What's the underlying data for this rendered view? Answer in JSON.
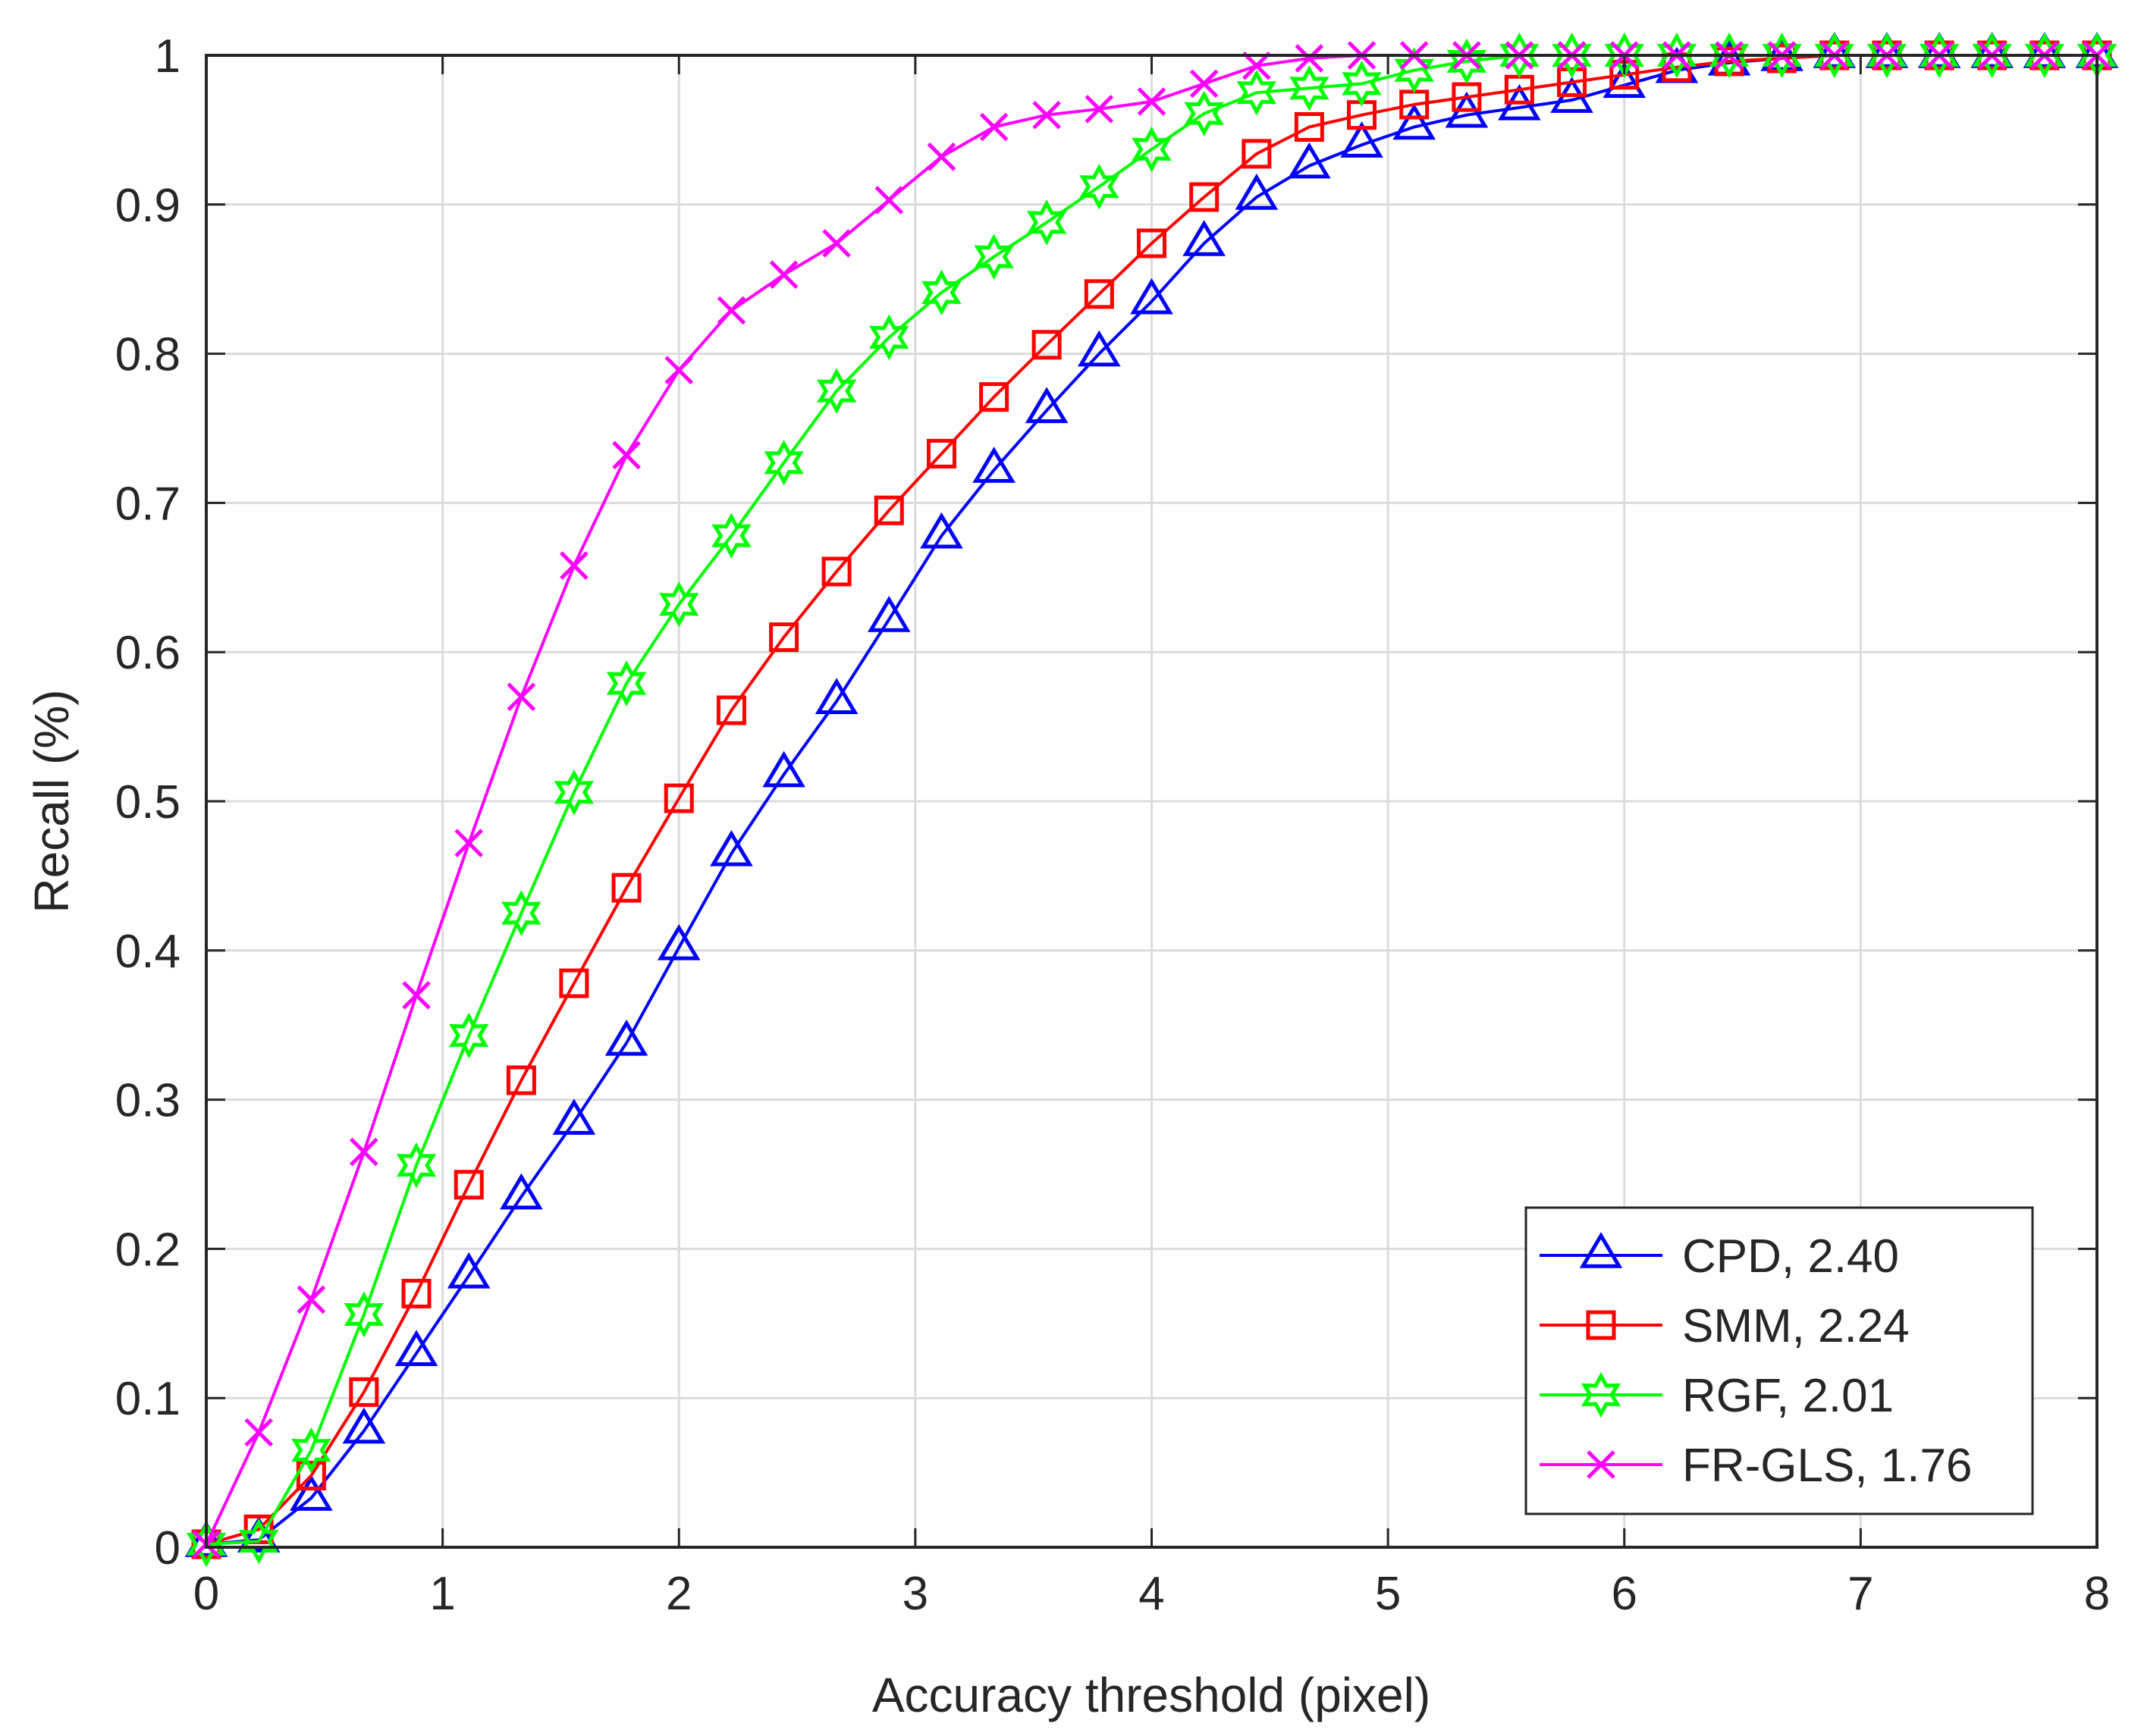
{
  "chart_data": {
    "type": "line",
    "title": "",
    "xlabel": "Accuracy threshold (pixel)",
    "ylabel": "Recall (%)",
    "xlim": [
      0,
      8
    ],
    "ylim": [
      0,
      1
    ],
    "xticks": [
      "0",
      "1",
      "2",
      "3",
      "4",
      "5",
      "6",
      "7",
      "8"
    ],
    "yticks": [
      "0",
      "0.1",
      "0.2",
      "0.3",
      "0.4",
      "0.5",
      "0.6",
      "0.7",
      "0.8",
      "0.9",
      "1"
    ],
    "grid": true,
    "legend_position": "bottom-right",
    "x": [
      0,
      0.222,
      0.444,
      0.667,
      0.889,
      1.111,
      1.333,
      1.556,
      1.778,
      2.0,
      2.222,
      2.444,
      2.667,
      2.889,
      3.111,
      3.333,
      3.556,
      3.778,
      4.0,
      4.222,
      4.444,
      4.667,
      4.889,
      5.111,
      5.333,
      5.556,
      5.778,
      6.0,
      6.222,
      6.444,
      6.667,
      6.889,
      7.111,
      7.333,
      7.556,
      7.778,
      8.0
    ],
    "series": [
      {
        "name": "CPD, 2.40",
        "color": "#0000ff",
        "marker": "triangle",
        "values": [
          0.002,
          0.005,
          0.033,
          0.078,
          0.13,
          0.182,
          0.235,
          0.285,
          0.338,
          0.402,
          0.465,
          0.518,
          0.567,
          0.622,
          0.678,
          0.722,
          0.762,
          0.8,
          0.835,
          0.874,
          0.905,
          0.926,
          0.94,
          0.952,
          0.96,
          0.965,
          0.97,
          0.98,
          0.99,
          0.995,
          0.998,
          1.0,
          1.0,
          1.0,
          1.0,
          1.0,
          1.0
        ]
      },
      {
        "name": "SMM, 2.24",
        "color": "#ff0000",
        "marker": "square",
        "values": [
          0.002,
          0.012,
          0.048,
          0.104,
          0.17,
          0.243,
          0.313,
          0.378,
          0.442,
          0.502,
          0.561,
          0.61,
          0.654,
          0.695,
          0.733,
          0.771,
          0.806,
          0.84,
          0.874,
          0.905,
          0.934,
          0.952,
          0.96,
          0.967,
          0.972,
          0.977,
          0.982,
          0.987,
          0.992,
          0.996,
          0.998,
          1.0,
          1.0,
          1.0,
          1.0,
          1.0,
          1.0
        ]
      },
      {
        "name": "RGF, 2.01",
        "color": "#00ff00",
        "marker": "hexagram",
        "values": [
          0.002,
          0.004,
          0.065,
          0.156,
          0.256,
          0.343,
          0.425,
          0.506,
          0.579,
          0.632,
          0.678,
          0.727,
          0.775,
          0.811,
          0.841,
          0.865,
          0.888,
          0.912,
          0.937,
          0.961,
          0.975,
          0.978,
          0.981,
          0.99,
          0.996,
          1.0,
          1.0,
          1.0,
          1.0,
          1.0,
          1.0,
          1.0,
          1.0,
          1.0,
          1.0,
          1.0,
          1.0
        ]
      },
      {
        "name": "FR-GLS, 1.76",
        "color": "#ff00ff",
        "marker": "x",
        "values": [
          0.002,
          0.077,
          0.166,
          0.265,
          0.37,
          0.472,
          0.57,
          0.658,
          0.732,
          0.789,
          0.829,
          0.853,
          0.874,
          0.903,
          0.932,
          0.952,
          0.96,
          0.964,
          0.969,
          0.981,
          0.993,
          0.998,
          1.0,
          1.0,
          1.0,
          1.0,
          1.0,
          1.0,
          1.0,
          1.0,
          1.0,
          1.0,
          1.0,
          1.0,
          1.0,
          1.0,
          1.0
        ]
      }
    ]
  }
}
